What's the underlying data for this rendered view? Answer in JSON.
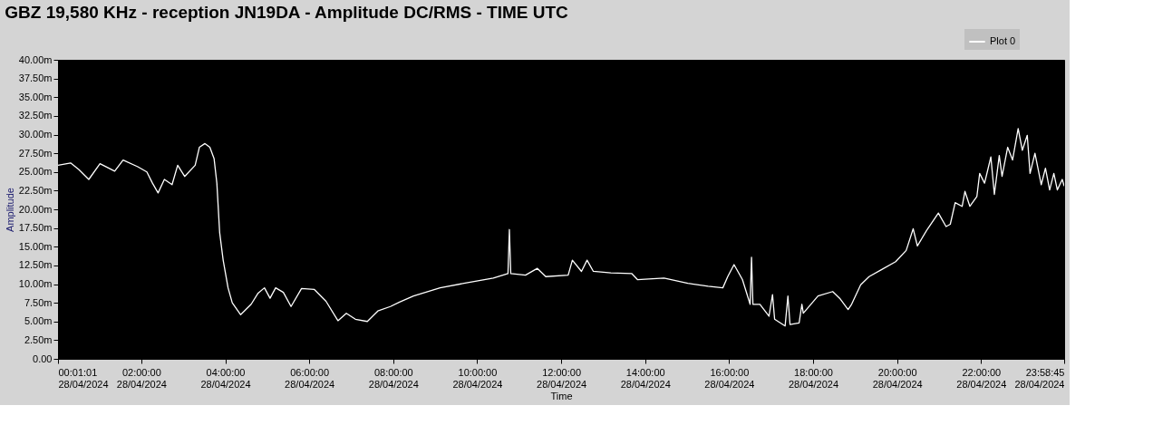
{
  "chart_data": {
    "type": "line",
    "title": "GBZ  19,580 KHz - reception JN19DA -  Amplitude DC/RMS   - TIME UTC",
    "xlabel": "Time",
    "ylabel": "Amplitude",
    "xlim": [
      "2024-04-28T00:01:01",
      "2024-04-28T23:58:45"
    ],
    "xticks": [
      {
        "value": "2024-04-28T00:01:01",
        "label": "00:01:01\n28/04/2024"
      },
      {
        "value": "2024-04-28T02:00",
        "label": "02:00:00\n28/04/2024"
      },
      {
        "value": "2024-04-28T04:00",
        "label": "04:00:00\n28/04/2024"
      },
      {
        "value": "2024-04-28T06:00",
        "label": "06:00:00\n28/04/2024"
      },
      {
        "value": "2024-04-28T08:00",
        "label": "08:00:00\n28/04/2024"
      },
      {
        "value": "2024-04-28T10:00",
        "label": "10:00:00\n28/04/2024"
      },
      {
        "value": "2024-04-28T12:00",
        "label": "12:00:00\n28/04/2024"
      },
      {
        "value": "2024-04-28T14:00",
        "label": "14:00:00\n28/04/2024"
      },
      {
        "value": "2024-04-28T16:00",
        "label": "16:00:00\n28/04/2024"
      },
      {
        "value": "2024-04-28T18:00",
        "label": "18:00:00\n28/04/2024"
      },
      {
        "value": "2024-04-28T20:00",
        "label": "20:00:00\n28/04/2024"
      },
      {
        "value": "2024-04-28T22:00",
        "label": "22:00:00\n28/04/2024"
      },
      {
        "value": "2024-04-28T23:58:45",
        "label": "23:58:45\n28/04/2024"
      }
    ],
    "ylim": [
      0,
      40
    ],
    "yticks": [
      {
        "value": 0,
        "label": "0.00"
      },
      {
        "value": 2.5,
        "label": "2.50m"
      },
      {
        "value": 5,
        "label": "5.00m"
      },
      {
        "value": 7.5,
        "label": "7.50m"
      },
      {
        "value": 10,
        "label": "10.00m"
      },
      {
        "value": 12.5,
        "label": "12.50m"
      },
      {
        "value": 15,
        "label": "15.00m"
      },
      {
        "value": 17.5,
        "label": "17.50m"
      },
      {
        "value": 20,
        "label": "20.00m"
      },
      {
        "value": 22.5,
        "label": "22.50m"
      },
      {
        "value": 25,
        "label": "25.00m"
      },
      {
        "value": 27.5,
        "label": "27.50m"
      },
      {
        "value": 30,
        "label": "30.00m"
      },
      {
        "value": 32.5,
        "label": "32.50m"
      },
      {
        "value": 35,
        "label": "35.00m"
      },
      {
        "value": 37.5,
        "label": "37.50m"
      },
      {
        "value": 40,
        "label": "40.00m"
      }
    ],
    "grid": false,
    "legend": "top right",
    "series": [
      {
        "name": "Plot 0",
        "color": "#ffffff",
        "x": [
          "2024-04-28T00:01:01",
          "2024-04-28T00:19",
          "2024-04-28T00:31",
          "2024-04-28T00:45",
          "2024-04-28T01:01",
          "2024-04-28T01:22",
          "2024-04-28T01:34",
          "2024-04-28T01:55",
          "2024-04-28T02:08",
          "2024-04-28T02:16",
          "2024-04-28T02:24",
          "2024-04-28T02:33",
          "2024-04-28T02:44",
          "2024-04-28T02:52",
          "2024-04-28T03:02",
          "2024-04-28T03:17",
          "2024-04-28T03:23",
          "2024-04-28T03:31",
          "2024-04-28T03:38",
          "2024-04-28T03:44",
          "2024-04-28T03:48",
          "2024-04-28T03:52",
          "2024-04-28T03:57",
          "2024-04-28T04:04",
          "2024-04-28T04:10",
          "2024-04-28T04:22",
          "2024-04-28T04:37",
          "2024-04-28T04:47",
          "2024-04-28T04:56",
          "2024-04-28T05:04",
          "2024-04-28T05:12",
          "2024-04-28T05:23",
          "2024-04-28T05:34",
          "2024-04-28T05:49",
          "2024-04-28T06:07",
          "2024-04-28T06:24",
          "2024-04-28T06:41",
          "2024-04-28T06:53",
          "2024-04-28T07:06",
          "2024-04-28T07:23",
          "2024-04-28T07:38",
          "2024-04-28T07:56",
          "2024-04-28T08:09",
          "2024-04-28T08:29",
          "2024-04-28T09:07",
          "2024-04-28T09:41",
          "2024-04-28T10:23",
          "2024-04-28T10:44",
          "2024-04-28T10:46",
          "2024-04-28T10:48",
          "2024-04-28T11:09",
          "2024-04-28T11:26",
          "2024-04-28T11:38",
          "2024-04-28T12:10",
          "2024-04-28T12:16",
          "2024-04-28T12:29",
          "2024-04-28T12:37",
          "2024-04-28T12:46",
          "2024-04-28T13:11",
          "2024-04-28T13:41",
          "2024-04-28T13:49",
          "2024-04-28T14:27",
          "2024-04-28T15:01",
          "2024-04-28T15:30",
          "2024-04-28T15:51",
          "2024-04-28T15:58",
          "2024-04-28T16:07",
          "2024-04-28T16:19",
          "2024-04-28T16:30",
          "2024-04-28T16:32",
          "2024-04-28T16:34",
          "2024-04-28T16:44",
          "2024-04-28T16:57",
          "2024-04-28T17:02",
          "2024-04-28T17:05",
          "2024-04-28T17:20",
          "2024-04-28T17:24",
          "2024-04-28T17:27",
          "2024-04-28T17:40",
          "2024-04-28T17:44",
          "2024-04-28T17:46",
          "2024-04-28T18:07",
          "2024-04-28T18:28",
          "2024-04-28T18:38",
          "2024-04-28T18:50",
          "2024-04-28T18:55",
          "2024-04-28T19:08",
          "2024-04-28T19:20",
          "2024-04-28T19:37",
          "2024-04-28T19:58",
          "2024-04-28T20:13",
          "2024-04-28T20:23",
          "2024-04-28T20:29",
          "2024-04-28T20:43",
          "2024-04-28T20:59",
          "2024-04-28T21:10",
          "2024-04-28T21:16",
          "2024-04-28T21:23",
          "2024-04-28T21:33",
          "2024-04-28T21:37",
          "2024-04-28T21:44",
          "2024-04-28T21:54",
          "2024-04-28T21:58",
          "2024-04-28T22:05",
          "2024-04-28T22:14",
          "2024-04-28T22:19",
          "2024-04-28T22:26",
          "2024-04-28T22:30",
          "2024-04-28T22:38",
          "2024-04-28T22:45",
          "2024-04-28T22:53",
          "2024-04-28T22:59",
          "2024-04-28T23:06",
          "2024-04-28T23:10",
          "2024-04-28T23:17",
          "2024-04-28T23:26",
          "2024-04-28T23:32",
          "2024-04-28T23:38",
          "2024-04-28T23:44",
          "2024-04-28T23:49",
          "2024-04-28T23:56",
          "2024-04-28T23:58:45"
        ],
        "values": [
          25.9,
          26.2,
          25.3,
          24.0,
          26.1,
          25.1,
          26.6,
          25.7,
          25.0,
          23.5,
          22.2,
          24.0,
          23.3,
          25.9,
          24.4,
          25.9,
          28.3,
          28.8,
          28.3,
          26.8,
          23.5,
          16.9,
          13.2,
          9.5,
          7.5,
          5.9,
          7.3,
          8.8,
          9.5,
          8.1,
          9.5,
          8.9,
          7.0,
          9.4,
          9.3,
          7.7,
          5.1,
          6.1,
          5.3,
          5.0,
          6.4,
          7.0,
          7.6,
          8.4,
          9.5,
          10.1,
          10.8,
          11.4,
          17.3,
          11.4,
          11.2,
          12.1,
          11.0,
          11.2,
          13.2,
          11.7,
          13.2,
          11.7,
          11.5,
          11.4,
          10.6,
          10.8,
          10.1,
          9.7,
          9.5,
          11.0,
          12.6,
          10.6,
          7.3,
          13.6,
          7.3,
          7.3,
          5.7,
          8.6,
          5.3,
          4.4,
          8.4,
          4.6,
          4.8,
          7.3,
          6.1,
          8.4,
          9.0,
          8.1,
          6.6,
          7.3,
          9.9,
          11.0,
          11.9,
          13.0,
          14.5,
          17.4,
          15.1,
          17.3,
          19.5,
          17.7,
          18.0,
          20.9,
          20.4,
          22.4,
          20.4,
          21.7,
          24.8,
          23.5,
          27.0,
          22.0,
          27.2,
          24.4,
          28.3,
          26.6,
          30.8,
          27.9,
          29.9,
          24.8,
          27.5,
          23.3,
          25.5,
          22.6,
          24.8,
          22.6,
          24.0,
          23.1
        ]
      }
    ]
  }
}
